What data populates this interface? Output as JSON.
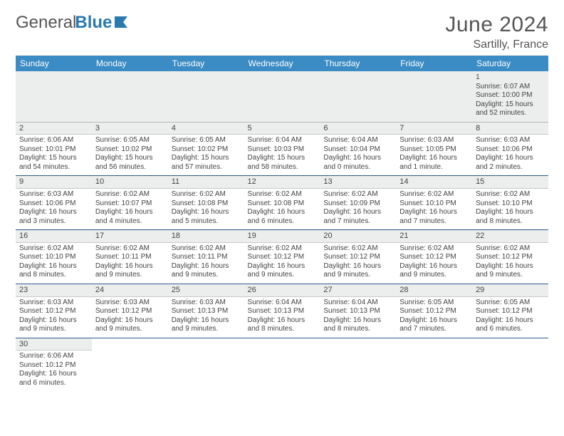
{
  "brand": {
    "part1": "General",
    "part2": "Blue"
  },
  "title": "June 2024",
  "location": "Sartilly, France",
  "colors": {
    "header_bg": "#3b8bc4",
    "header_fg": "#ffffff",
    "row_divider": "#2a5d8a",
    "daybar_bg": "#eceded",
    "text": "#444444",
    "logo_blue": "#2a7ab0"
  },
  "weekdays": [
    "Sunday",
    "Monday",
    "Tuesday",
    "Wednesday",
    "Thursday",
    "Friday",
    "Saturday"
  ],
  "weeks": [
    [
      null,
      null,
      null,
      null,
      null,
      null,
      {
        "n": "1",
        "sr": "Sunrise: 6:07 AM",
        "ss": "Sunset: 10:00 PM",
        "dl": "Daylight: 15 hours and 52 minutes."
      }
    ],
    [
      {
        "n": "2",
        "sr": "Sunrise: 6:06 AM",
        "ss": "Sunset: 10:01 PM",
        "dl": "Daylight: 15 hours and 54 minutes."
      },
      {
        "n": "3",
        "sr": "Sunrise: 6:05 AM",
        "ss": "Sunset: 10:02 PM",
        "dl": "Daylight: 15 hours and 56 minutes."
      },
      {
        "n": "4",
        "sr": "Sunrise: 6:05 AM",
        "ss": "Sunset: 10:02 PM",
        "dl": "Daylight: 15 hours and 57 minutes."
      },
      {
        "n": "5",
        "sr": "Sunrise: 6:04 AM",
        "ss": "Sunset: 10:03 PM",
        "dl": "Daylight: 15 hours and 58 minutes."
      },
      {
        "n": "6",
        "sr": "Sunrise: 6:04 AM",
        "ss": "Sunset: 10:04 PM",
        "dl": "Daylight: 16 hours and 0 minutes."
      },
      {
        "n": "7",
        "sr": "Sunrise: 6:03 AM",
        "ss": "Sunset: 10:05 PM",
        "dl": "Daylight: 16 hours and 1 minute."
      },
      {
        "n": "8",
        "sr": "Sunrise: 6:03 AM",
        "ss": "Sunset: 10:06 PM",
        "dl": "Daylight: 16 hours and 2 minutes."
      }
    ],
    [
      {
        "n": "9",
        "sr": "Sunrise: 6:03 AM",
        "ss": "Sunset: 10:06 PM",
        "dl": "Daylight: 16 hours and 3 minutes."
      },
      {
        "n": "10",
        "sr": "Sunrise: 6:02 AM",
        "ss": "Sunset: 10:07 PM",
        "dl": "Daylight: 16 hours and 4 minutes."
      },
      {
        "n": "11",
        "sr": "Sunrise: 6:02 AM",
        "ss": "Sunset: 10:08 PM",
        "dl": "Daylight: 16 hours and 5 minutes."
      },
      {
        "n": "12",
        "sr": "Sunrise: 6:02 AM",
        "ss": "Sunset: 10:08 PM",
        "dl": "Daylight: 16 hours and 6 minutes."
      },
      {
        "n": "13",
        "sr": "Sunrise: 6:02 AM",
        "ss": "Sunset: 10:09 PM",
        "dl": "Daylight: 16 hours and 7 minutes."
      },
      {
        "n": "14",
        "sr": "Sunrise: 6:02 AM",
        "ss": "Sunset: 10:10 PM",
        "dl": "Daylight: 16 hours and 7 minutes."
      },
      {
        "n": "15",
        "sr": "Sunrise: 6:02 AM",
        "ss": "Sunset: 10:10 PM",
        "dl": "Daylight: 16 hours and 8 minutes."
      }
    ],
    [
      {
        "n": "16",
        "sr": "Sunrise: 6:02 AM",
        "ss": "Sunset: 10:10 PM",
        "dl": "Daylight: 16 hours and 8 minutes."
      },
      {
        "n": "17",
        "sr": "Sunrise: 6:02 AM",
        "ss": "Sunset: 10:11 PM",
        "dl": "Daylight: 16 hours and 9 minutes."
      },
      {
        "n": "18",
        "sr": "Sunrise: 6:02 AM",
        "ss": "Sunset: 10:11 PM",
        "dl": "Daylight: 16 hours and 9 minutes."
      },
      {
        "n": "19",
        "sr": "Sunrise: 6:02 AM",
        "ss": "Sunset: 10:12 PM",
        "dl": "Daylight: 16 hours and 9 minutes."
      },
      {
        "n": "20",
        "sr": "Sunrise: 6:02 AM",
        "ss": "Sunset: 10:12 PM",
        "dl": "Daylight: 16 hours and 9 minutes."
      },
      {
        "n": "21",
        "sr": "Sunrise: 6:02 AM",
        "ss": "Sunset: 10:12 PM",
        "dl": "Daylight: 16 hours and 9 minutes."
      },
      {
        "n": "22",
        "sr": "Sunrise: 6:02 AM",
        "ss": "Sunset: 10:12 PM",
        "dl": "Daylight: 16 hours and 9 minutes."
      }
    ],
    [
      {
        "n": "23",
        "sr": "Sunrise: 6:03 AM",
        "ss": "Sunset: 10:12 PM",
        "dl": "Daylight: 16 hours and 9 minutes."
      },
      {
        "n": "24",
        "sr": "Sunrise: 6:03 AM",
        "ss": "Sunset: 10:12 PM",
        "dl": "Daylight: 16 hours and 9 minutes."
      },
      {
        "n": "25",
        "sr": "Sunrise: 6:03 AM",
        "ss": "Sunset: 10:13 PM",
        "dl": "Daylight: 16 hours and 9 minutes."
      },
      {
        "n": "26",
        "sr": "Sunrise: 6:04 AM",
        "ss": "Sunset: 10:13 PM",
        "dl": "Daylight: 16 hours and 8 minutes."
      },
      {
        "n": "27",
        "sr": "Sunrise: 6:04 AM",
        "ss": "Sunset: 10:13 PM",
        "dl": "Daylight: 16 hours and 8 minutes."
      },
      {
        "n": "28",
        "sr": "Sunrise: 6:05 AM",
        "ss": "Sunset: 10:12 PM",
        "dl": "Daylight: 16 hours and 7 minutes."
      },
      {
        "n": "29",
        "sr": "Sunrise: 6:05 AM",
        "ss": "Sunset: 10:12 PM",
        "dl": "Daylight: 16 hours and 6 minutes."
      }
    ],
    [
      {
        "n": "30",
        "sr": "Sunrise: 6:06 AM",
        "ss": "Sunset: 10:12 PM",
        "dl": "Daylight: 16 hours and 6 minutes."
      },
      null,
      null,
      null,
      null,
      null,
      null
    ]
  ]
}
